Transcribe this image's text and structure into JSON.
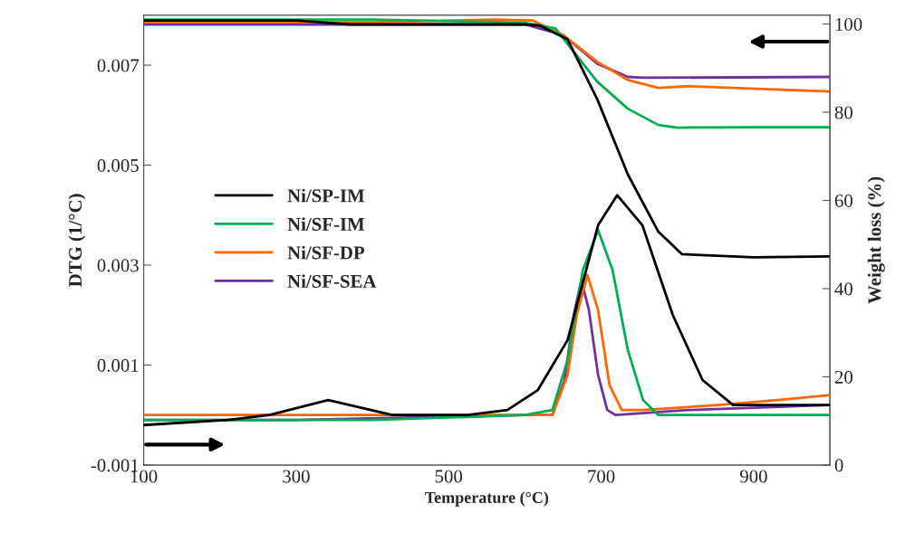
{
  "chart_data": {
    "type": "line",
    "xlabel": "Temperature (°C)",
    "ylabel": "DTG (1/°C)",
    "y2label": "Weight loss (%)",
    "xlim": [
      100,
      1000
    ],
    "xticks": [
      100,
      300,
      500,
      700,
      900
    ],
    "ylim": [
      -0.001,
      0.008
    ],
    "yticks": [
      -0.001,
      0.001,
      0.003,
      0.005,
      0.007
    ],
    "y2lim": [
      0,
      102
    ],
    "y2ticks": [
      0,
      20,
      40,
      60,
      80,
      100
    ],
    "legend": "left",
    "grid": false,
    "marker": "none",
    "line_style": "solid",
    "series": [
      {
        "name": "Ni/SP-IM",
        "color": "#000000",
        "x": [
          100,
          209,
          265,
          342,
          426,
          525,
          577,
          617,
          656,
          696,
          721,
          754,
          794,
          833,
          873,
          1000
        ],
        "values": [
          -0.0002,
          -0.0001,
          0.0,
          0.0003,
          0.0,
          0.0,
          0.0001,
          0.0005,
          0.0015,
          0.0038,
          0.0044,
          0.0038,
          0.002,
          0.0007,
          0.0002,
          0.0002
        ]
      },
      {
        "name": "Ni/SF-IM",
        "color": "#00b050",
        "x": [
          100,
          400,
          600,
          636,
          656,
          676,
          696,
          715,
          735,
          755,
          775,
          794,
          1000
        ],
        "values": [
          -0.0001,
          -0.0001,
          0.0,
          0.0001,
          0.0011,
          0.0029,
          0.0037,
          0.0029,
          0.0013,
          0.0003,
          0.0,
          0.0,
          0.0
        ]
      },
      {
        "name": "Ni/SF-DP",
        "color": "#ff6600",
        "x": [
          100,
          400,
          636,
          656,
          668,
          682,
          696,
          711,
          727,
          755,
          853,
          932,
          1000
        ],
        "values": [
          0.0,
          0.0,
          0.0,
          0.0008,
          0.002,
          0.0028,
          0.0021,
          0.0006,
          0.0001,
          0.0001,
          0.0002,
          0.0003,
          0.0004
        ]
      },
      {
        "name": "Ni/SF-SEA",
        "color": "#7030a0",
        "x": [
          100,
          300,
          600,
          636,
          652,
          664,
          674,
          684,
          696,
          708,
          719,
          814,
          1000
        ],
        "values": [
          -0.0001,
          -0.0001,
          0.0,
          0.0,
          0.0007,
          0.002,
          0.0027,
          0.0021,
          0.0008,
          0.0001,
          0.0,
          0.0001,
          0.0002
        ]
      },
      {
        "color": "#000000",
        "axis": "y2",
        "x": [
          100,
          300,
          370,
          500,
          600,
          620,
          656,
          695,
          735,
          775,
          806,
          900,
          1000
        ],
        "values": [
          100.8,
          100.8,
          99.9,
          99.9,
          99.9,
          99.6,
          96.5,
          82.9,
          65.9,
          52.9,
          47.8,
          47.1,
          47.3
        ]
      },
      {
        "color": "#00b050",
        "axis": "y2",
        "x": [
          100,
          400,
          600,
          640,
          695,
          735,
          775,
          800,
          900,
          1000
        ],
        "values": [
          101.0,
          101.0,
          100.3,
          99.0,
          86.9,
          80.8,
          77.1,
          76.5,
          76.6,
          76.6
        ]
      },
      {
        "color": "#ff6600",
        "axis": "y2",
        "x": [
          100,
          400,
          560,
          610,
          650,
          695,
          735,
          775,
          815,
          1000
        ],
        "values": [
          100.4,
          100.4,
          101.0,
          100.8,
          97.5,
          91.4,
          87.3,
          85.5,
          85.9,
          84.7
        ]
      },
      {
        "color": "#7030a0",
        "axis": "y2",
        "x": [
          100,
          400,
          600,
          650,
          695,
          735,
          755,
          1000
        ],
        "values": [
          99.9,
          99.9,
          99.9,
          97.5,
          91.0,
          88.0,
          87.8,
          88.0
        ]
      }
    ]
  }
}
